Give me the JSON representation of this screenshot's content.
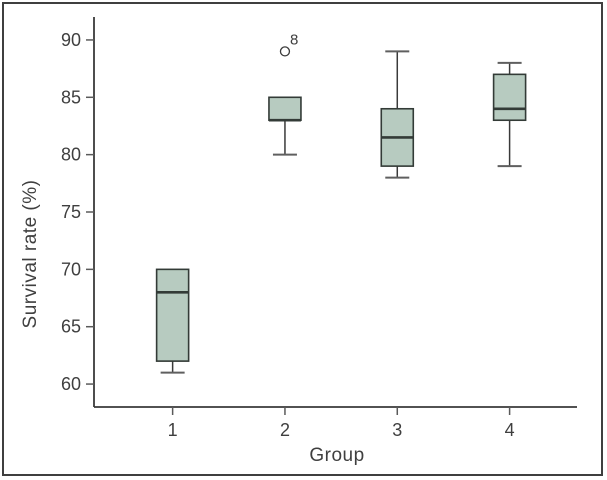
{
  "chart_data": {
    "type": "boxplot",
    "title": "",
    "xlabel": "Group",
    "ylabel": "Survival rate (%)",
    "categories": [
      "1",
      "2",
      "3",
      "4"
    ],
    "yticks": [
      60,
      65,
      70,
      75,
      80,
      85,
      90
    ],
    "ylim": [
      58,
      92
    ],
    "xlim": [
      0.3,
      4.6
    ],
    "grid": false,
    "legend": null,
    "series": [
      {
        "group": "1",
        "whisker_low": 61,
        "q1": 62,
        "median": 68,
        "q3": 70,
        "whisker_high": 70,
        "outliers": []
      },
      {
        "group": "2",
        "whisker_low": 80,
        "q1": 83,
        "median": 83,
        "q3": 85,
        "whisker_high": 85,
        "outliers": [
          {
            "value": 89,
            "label": "8"
          }
        ]
      },
      {
        "group": "3",
        "whisker_low": 78,
        "q1": 79,
        "median": 81.5,
        "q3": 84,
        "whisker_high": 89,
        "outliers": []
      },
      {
        "group": "4",
        "whisker_low": 79,
        "q1": 83,
        "median": 84,
        "q3": 87,
        "whisker_high": 88,
        "outliers": []
      }
    ],
    "colors": {
      "box_fill": "#b7cbc0",
      "box_border": "#333b37",
      "median": "#333b37",
      "whisker": "#3a3a3a",
      "cap": "#5f5f5f",
      "axis": "#3a3a3a",
      "tick": "#5a5a5a",
      "text": "#3f3f3f",
      "outlier_stroke": "#3a3a3a",
      "figure_border": "#3f3f3f",
      "background": "#ffffff"
    }
  }
}
